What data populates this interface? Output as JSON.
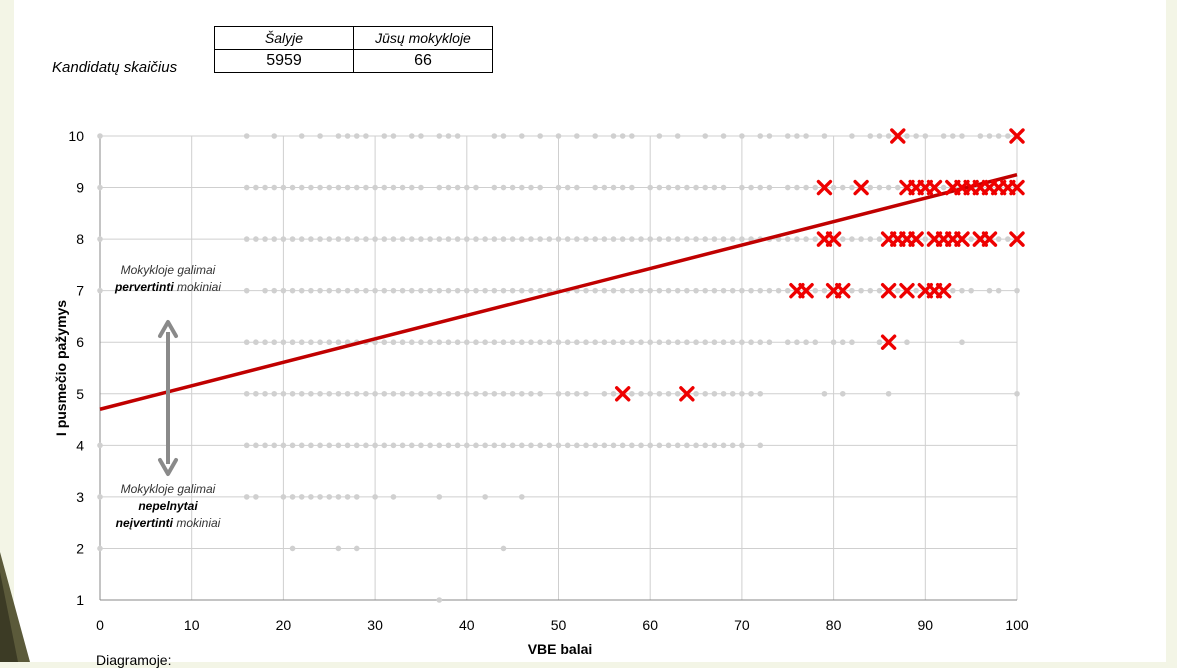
{
  "stats": {
    "row_label": "Kandidatų skaičius",
    "col1_header": "Šalyje",
    "col2_header": "Jūsų mokykloje",
    "col1_value": "5959",
    "col2_value": "66"
  },
  "annotations": {
    "over_line1": "Mokykloje galimai",
    "over_bold": "pervertinti",
    "over_rest": " mokiniai",
    "under_line1": "Mokykloje galimai",
    "under_bold1": "nepelnytai",
    "under_bold2": "neįvertinti",
    "under_rest": " mokiniai"
  },
  "footer_text": "Diagramoje:",
  "chart_data": {
    "type": "scatter",
    "xlabel": "VBE balai",
    "ylabel": "I pusmečio pažymys",
    "xlim": [
      0,
      100
    ],
    "ylim": [
      1,
      10
    ],
    "xticks": [
      0,
      10,
      20,
      30,
      40,
      50,
      60,
      70,
      80,
      90,
      100
    ],
    "yticks": [
      1,
      2,
      3,
      4,
      5,
      6,
      7,
      8,
      9,
      10
    ],
    "grid": true,
    "colors": {
      "country_points": "#d0d0d0",
      "school_points": "#ee0000",
      "trend_line": "#c00000",
      "arrow": "#8a8a8a"
    },
    "trend_line": {
      "x": [
        0,
        100
      ],
      "y": [
        4.7,
        9.25
      ]
    },
    "country_rows": [
      {
        "y": 10,
        "x": [
          0,
          16,
          19,
          22,
          24,
          26,
          27,
          28,
          29,
          31,
          32,
          34,
          35,
          37,
          38,
          39,
          43,
          44,
          46,
          48,
          50,
          52,
          54,
          56,
          57,
          58,
          61,
          63,
          66,
          68,
          70,
          72,
          73,
          75,
          76,
          77,
          79,
          82,
          84,
          85,
          86,
          88,
          89,
          90,
          92,
          93,
          94,
          96,
          97,
          98,
          99
        ]
      },
      {
        "y": 9,
        "x": [
          0,
          16,
          17,
          18,
          19,
          20,
          21,
          22,
          23,
          24,
          25,
          26,
          27,
          28,
          29,
          30,
          31,
          32,
          33,
          34,
          35,
          37,
          38,
          39,
          40,
          41,
          43,
          44,
          45,
          46,
          47,
          48,
          50,
          51,
          52,
          54,
          55,
          56,
          57,
          58,
          60,
          61,
          62,
          63,
          64,
          65,
          66,
          67,
          68,
          70,
          71,
          72,
          73,
          75,
          76,
          77,
          78,
          80,
          81,
          82,
          84,
          85,
          86,
          87,
          88,
          89,
          90,
          91,
          92,
          93,
          94,
          95,
          96,
          97,
          98,
          99
        ]
      },
      {
        "y": 8,
        "x": [
          0,
          16,
          17,
          18,
          19,
          20,
          21,
          22,
          23,
          24,
          25,
          26,
          27,
          28,
          29,
          30,
          31,
          32,
          33,
          34,
          35,
          36,
          37,
          38,
          39,
          40,
          41,
          42,
          43,
          44,
          45,
          46,
          47,
          48,
          49,
          50,
          51,
          52,
          53,
          54,
          55,
          56,
          57,
          58,
          59,
          60,
          61,
          62,
          63,
          64,
          65,
          66,
          67,
          68,
          69,
          70,
          71,
          72,
          73,
          74,
          75,
          76,
          77,
          78,
          80,
          81,
          82,
          83,
          84,
          85,
          86,
          87,
          88,
          89,
          90,
          91,
          92,
          93,
          94,
          95,
          96,
          97,
          98,
          99
        ]
      },
      {
        "y": 7,
        "x": [
          0,
          16,
          18,
          19,
          20,
          21,
          22,
          23,
          24,
          25,
          26,
          27,
          28,
          29,
          30,
          31,
          32,
          33,
          34,
          35,
          36,
          37,
          38,
          39,
          40,
          41,
          42,
          43,
          44,
          45,
          46,
          47,
          48,
          49,
          50,
          51,
          52,
          53,
          54,
          55,
          56,
          57,
          58,
          59,
          60,
          61,
          62,
          63,
          64,
          65,
          66,
          67,
          68,
          69,
          70,
          71,
          72,
          73,
          74,
          75,
          77,
          78,
          79,
          82,
          83,
          84,
          85,
          87,
          89,
          93,
          94,
          95,
          97,
          98,
          100
        ]
      },
      {
        "y": 6,
        "x": [
          16,
          17,
          18,
          19,
          20,
          21,
          22,
          23,
          24,
          25,
          26,
          27,
          28,
          29,
          30,
          31,
          32,
          33,
          34,
          35,
          36,
          37,
          38,
          39,
          40,
          41,
          42,
          43,
          44,
          45,
          46,
          47,
          48,
          49,
          50,
          51,
          52,
          53,
          54,
          55,
          56,
          57,
          58,
          59,
          60,
          61,
          62,
          63,
          64,
          65,
          66,
          67,
          68,
          69,
          70,
          71,
          72,
          73,
          75,
          76,
          77,
          78,
          80,
          81,
          82,
          85,
          88,
          94
        ]
      },
      {
        "y": 5,
        "x": [
          16,
          17,
          18,
          19,
          20,
          21,
          22,
          23,
          24,
          25,
          26,
          27,
          28,
          29,
          30,
          31,
          32,
          33,
          34,
          35,
          36,
          37,
          38,
          39,
          40,
          41,
          42,
          43,
          44,
          45,
          46,
          47,
          48,
          50,
          51,
          52,
          53,
          55,
          56,
          58,
          59,
          60,
          61,
          62,
          63,
          65,
          66,
          67,
          68,
          69,
          70,
          71,
          72,
          79,
          81,
          86,
          100
        ]
      },
      {
        "y": 4,
        "x": [
          0,
          16,
          17,
          18,
          19,
          20,
          21,
          22,
          23,
          24,
          25,
          26,
          27,
          28,
          29,
          30,
          31,
          32,
          33,
          34,
          35,
          36,
          37,
          38,
          39,
          40,
          41,
          42,
          43,
          44,
          45,
          46,
          47,
          48,
          49,
          50,
          51,
          52,
          53,
          54,
          55,
          56,
          57,
          58,
          59,
          60,
          61,
          62,
          63,
          64,
          65,
          66,
          67,
          68,
          69,
          70,
          72
        ]
      },
      {
        "y": 3,
        "x": [
          0,
          16,
          17,
          20,
          21,
          22,
          23,
          24,
          25,
          26,
          27,
          28,
          30,
          32,
          37,
          42,
          46
        ]
      },
      {
        "y": 2,
        "x": [
          0,
          21,
          26,
          28,
          44
        ]
      },
      {
        "y": 1,
        "x": [
          37
        ]
      }
    ],
    "school_points": [
      {
        "x": 87,
        "y": 10
      },
      {
        "x": 100,
        "y": 10
      },
      {
        "x": 79,
        "y": 9
      },
      {
        "x": 83,
        "y": 9
      },
      {
        "x": 88,
        "y": 9
      },
      {
        "x": 89,
        "y": 9
      },
      {
        "x": 90,
        "y": 9
      },
      {
        "x": 91,
        "y": 9
      },
      {
        "x": 93,
        "y": 9
      },
      {
        "x": 94,
        "y": 9
      },
      {
        "x": 95,
        "y": 9
      },
      {
        "x": 96,
        "y": 9
      },
      {
        "x": 97,
        "y": 9
      },
      {
        "x": 98,
        "y": 9
      },
      {
        "x": 99,
        "y": 9
      },
      {
        "x": 100,
        "y": 9
      },
      {
        "x": 79,
        "y": 8
      },
      {
        "x": 80,
        "y": 8
      },
      {
        "x": 86,
        "y": 8
      },
      {
        "x": 87,
        "y": 8
      },
      {
        "x": 88,
        "y": 8
      },
      {
        "x": 89,
        "y": 8
      },
      {
        "x": 91,
        "y": 8
      },
      {
        "x": 92,
        "y": 8
      },
      {
        "x": 93,
        "y": 8
      },
      {
        "x": 94,
        "y": 8
      },
      {
        "x": 96,
        "y": 8
      },
      {
        "x": 97,
        "y": 8
      },
      {
        "x": 100,
        "y": 8
      },
      {
        "x": 76,
        "y": 7
      },
      {
        "x": 77,
        "y": 7
      },
      {
        "x": 80,
        "y": 7
      },
      {
        "x": 81,
        "y": 7
      },
      {
        "x": 86,
        "y": 7
      },
      {
        "x": 88,
        "y": 7
      },
      {
        "x": 90,
        "y": 7
      },
      {
        "x": 91,
        "y": 7
      },
      {
        "x": 92,
        "y": 7
      },
      {
        "x": 86,
        "y": 6
      },
      {
        "x": 57,
        "y": 5
      },
      {
        "x": 64,
        "y": 5
      }
    ]
  }
}
